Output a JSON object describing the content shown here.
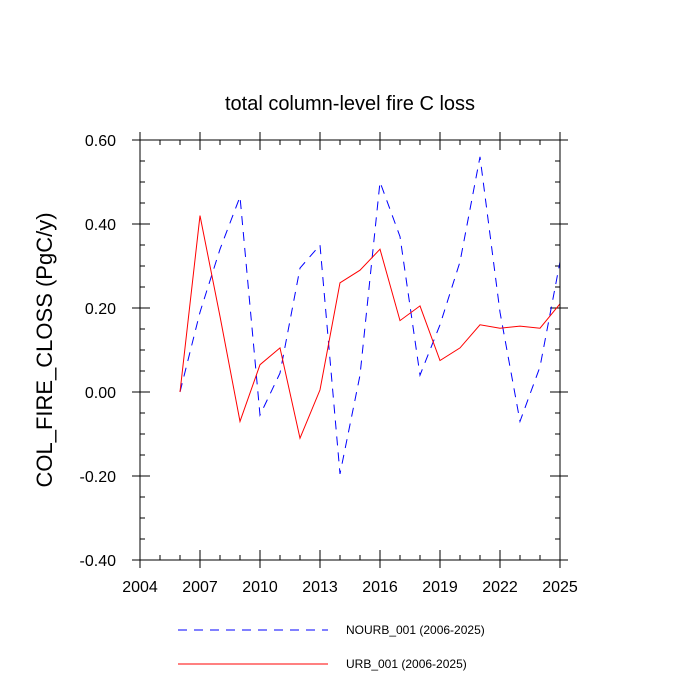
{
  "chart_data": {
    "type": "line",
    "title": "total column-level fire C loss",
    "xlabel": "",
    "ylabel": "COL_FIRE_CLOSS  (PgC/y)",
    "xlim": [
      2004,
      2025
    ],
    "ylim": [
      -0.4,
      0.6
    ],
    "x_ticks": [
      2004,
      2007,
      2010,
      2013,
      2016,
      2019,
      2022,
      2025
    ],
    "x_tick_labels": [
      "2004",
      "2007",
      "2010",
      "2013",
      "2016",
      "2019",
      "2022",
      "2025"
    ],
    "y_ticks": [
      -0.4,
      -0.2,
      0.0,
      0.2,
      0.4,
      0.6
    ],
    "y_tick_labels": [
      "-0.40",
      "-0.20",
      "0.00",
      "0.20",
      "0.40",
      "0.60"
    ],
    "x": [
      2006,
      2007,
      2008,
      2009,
      2010,
      2011,
      2012,
      2013,
      2014,
      2015,
      2016,
      2017,
      2018,
      2019,
      2020,
      2021,
      2022,
      2023,
      2024,
      2025
    ],
    "series": [
      {
        "name": "NOURB_001 (2006-2025)",
        "color": "#0000ff",
        "dash": "dashed",
        "values": [
          0.0,
          0.19,
          0.34,
          0.465,
          -0.055,
          0.045,
          0.295,
          0.35,
          -0.195,
          0.04,
          0.5,
          0.37,
          0.04,
          0.16,
          0.31,
          0.56,
          0.19,
          -0.07,
          0.06,
          0.31
        ]
      },
      {
        "name": "URB_001 (2006-2025)",
        "color": "#ff0000",
        "dash": "solid",
        "values": [
          0.0,
          0.42,
          0.18,
          -0.07,
          0.065,
          0.105,
          -0.11,
          0.005,
          0.26,
          0.29,
          0.34,
          0.17,
          0.205,
          0.075,
          0.105,
          0.16,
          0.152,
          0.157,
          0.152,
          0.21
        ]
      }
    ],
    "legend_position": "bottom"
  }
}
